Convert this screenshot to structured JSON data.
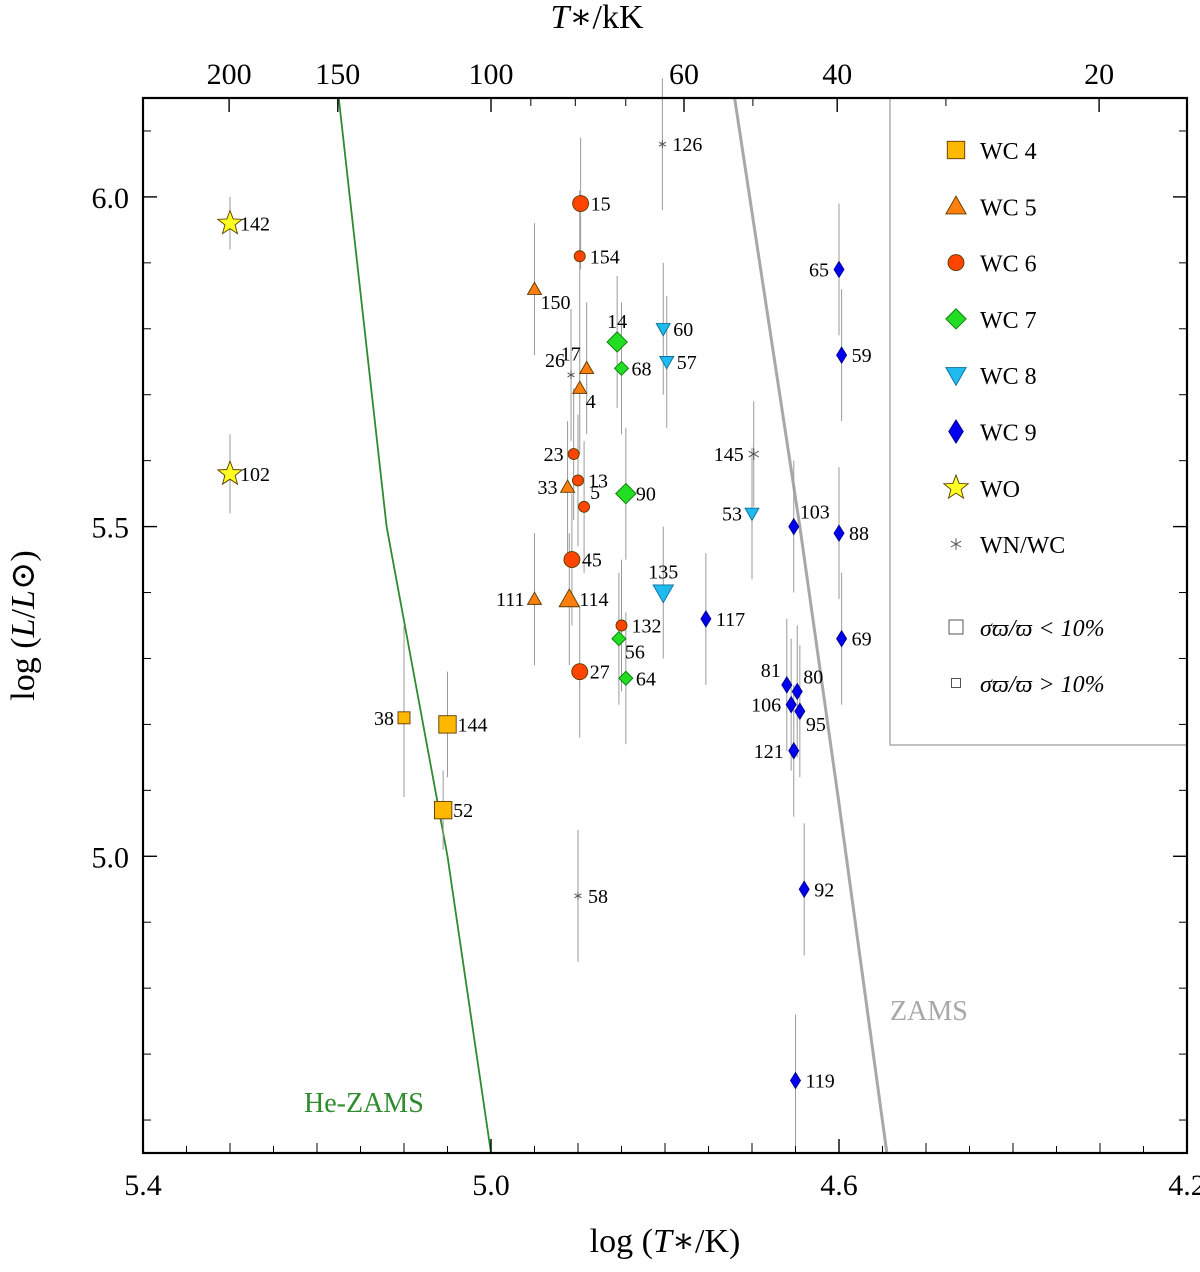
{
  "chart_data": {
    "type": "scatter",
    "title": "",
    "xlabel_bottom": "log (T∗/K)",
    "xlabel_top": "T∗/kK",
    "ylabel": "log (L/L⊙)",
    "xlim": [
      5.4,
      4.2
    ],
    "ylim": [
      4.55,
      6.15
    ],
    "x_ticks": [
      "5.4",
      "5.0",
      "4.6",
      "4.2"
    ],
    "x_tick_values": [
      5.4,
      5.0,
      4.6,
      4.2
    ],
    "y_ticks": [
      "5.0",
      "5.5",
      "6.0"
    ],
    "y_tick_values": [
      5.0,
      5.5,
      6.0
    ],
    "top_ticks": [
      "200",
      "150",
      "100",
      "60",
      "40",
      "20"
    ],
    "top_tick_values": [
      200,
      150,
      100,
      60,
      40,
      20
    ],
    "legend": {
      "placement": "top-right",
      "entries": [
        {
          "label": "WC 4",
          "type": "WC4"
        },
        {
          "label": "WC 5",
          "type": "WC5"
        },
        {
          "label": "WC 6",
          "type": "WC6"
        },
        {
          "label": "WC 7",
          "type": "WC7"
        },
        {
          "label": "WC 8",
          "type": "WC8"
        },
        {
          "label": "WC 9",
          "type": "WC9"
        },
        {
          "label": "WO",
          "type": "WO"
        },
        {
          "label": "WN/WC",
          "type": "WNWC"
        }
      ],
      "size_entries": [
        {
          "label": "σϖ/ϖ < 10%",
          "big": true
        },
        {
          "label": "σϖ/ϖ > 10%",
          "big": false
        }
      ]
    },
    "curves": [
      {
        "name": "He-ZAMS",
        "label": "He-ZAMS",
        "color": "#2e8b2e",
        "points": [
          [
            5.175,
            6.15
          ],
          [
            5.12,
            5.5
          ],
          [
            5.05,
            5.0
          ],
          [
            5.0,
            4.55
          ]
        ]
      },
      {
        "name": "ZAMS",
        "label": "ZAMS",
        "color": "#a8a8a8",
        "points": [
          [
            4.72,
            6.15
          ],
          [
            4.645,
            5.5
          ],
          [
            4.6,
            5.08
          ],
          [
            4.545,
            4.55
          ]
        ]
      }
    ],
    "series": [
      {
        "name": "WC 4",
        "marker": "square",
        "color": "#ffb800",
        "points": [
          {
            "label": "38",
            "x": 5.1,
            "y": 5.21,
            "yerr": [
              0.12,
              0.14
            ],
            "big": false,
            "side": "left"
          },
          {
            "label": "144",
            "x": 5.05,
            "y": 5.2,
            "yerr": [
              0.08,
              0.08
            ],
            "big": true,
            "side": "right"
          },
          {
            "label": "52",
            "x": 5.055,
            "y": 5.07,
            "yerr": [
              0.06,
              0.06
            ],
            "big": true,
            "side": "right"
          }
        ]
      },
      {
        "name": "WC 5",
        "marker": "triangle-up",
        "color": "#ff7f0e",
        "points": [
          {
            "label": "150",
            "x": 4.95,
            "y": 5.86,
            "yerr": [
              0.1,
              0.1
            ],
            "big": false,
            "side": "right-below"
          },
          {
            "label": "17",
            "x": 4.89,
            "y": 5.74,
            "yerr": [
              0.1,
              0.1
            ],
            "big": false,
            "side": "left-above"
          },
          {
            "label": "4",
            "x": 4.898,
            "y": 5.71,
            "yerr": [
              0.1,
              0.1
            ],
            "big": false,
            "side": "right-below"
          },
          {
            "label": "33",
            "x": 4.912,
            "y": 5.56,
            "yerr": [
              0.1,
              0.1
            ],
            "big": false,
            "side": "left"
          },
          {
            "label": "111",
            "x": 4.95,
            "y": 5.39,
            "yerr": [
              0.1,
              0.1
            ],
            "big": false,
            "side": "left"
          },
          {
            "label": "114",
            "x": 4.91,
            "y": 5.39,
            "yerr": [
              0.1,
              0.1
            ],
            "big": true,
            "side": "right"
          }
        ]
      },
      {
        "name": "WC 6",
        "marker": "circle",
        "color": "#ff4500",
        "points": [
          {
            "label": "15",
            "x": 4.897,
            "y": 5.99,
            "yerr": [
              0.1,
              0.1
            ],
            "big": true,
            "side": "right"
          },
          {
            "label": "154",
            "x": 4.898,
            "y": 5.91,
            "yerr": [
              0.1,
              0.1
            ],
            "big": false,
            "side": "right"
          },
          {
            "label": "23",
            "x": 4.905,
            "y": 5.61,
            "yerr": [
              0.1,
              0.1
            ],
            "big": false,
            "side": "left"
          },
          {
            "label": "13",
            "x": 4.9,
            "y": 5.57,
            "yerr": [
              0.1,
              0.1
            ],
            "big": false,
            "side": "right"
          },
          {
            "label": "5",
            "x": 4.893,
            "y": 5.53,
            "yerr": [
              0.1,
              0.1
            ],
            "big": false,
            "side": "right-above"
          },
          {
            "label": "45",
            "x": 4.907,
            "y": 5.45,
            "yerr": [
              0.1,
              0.1
            ],
            "big": true,
            "side": "right"
          },
          {
            "label": "132",
            "x": 4.85,
            "y": 5.35,
            "yerr": [
              0.1,
              0.1
            ],
            "big": false,
            "side": "right"
          },
          {
            "label": "27",
            "x": 4.898,
            "y": 5.28,
            "yerr": [
              0.1,
              0.1
            ],
            "big": true,
            "side": "right"
          }
        ]
      },
      {
        "name": "WC 7",
        "marker": "diamond",
        "color": "#22dd22",
        "points": [
          {
            "label": "14",
            "x": 4.855,
            "y": 5.78,
            "yerr": [
              0.1,
              0.1
            ],
            "big": true,
            "side": "top"
          },
          {
            "label": "68",
            "x": 4.85,
            "y": 5.74,
            "yerr": [
              0.1,
              0.1
            ],
            "big": false,
            "side": "right"
          },
          {
            "label": "90",
            "x": 4.845,
            "y": 5.55,
            "yerr": [
              0.1,
              0.1
            ],
            "big": true,
            "side": "right"
          },
          {
            "label": "56",
            "x": 4.853,
            "y": 5.33,
            "yerr": [
              0.1,
              0.1
            ],
            "big": false,
            "side": "right-below"
          },
          {
            "label": "64",
            "x": 4.845,
            "y": 5.27,
            "yerr": [
              0.1,
              0.1
            ],
            "big": false,
            "side": "right"
          }
        ]
      },
      {
        "name": "WC 8",
        "marker": "triangle-down",
        "color": "#1fbbee",
        "points": [
          {
            "label": "60",
            "x": 4.802,
            "y": 5.8,
            "yerr": [
              0.1,
              0.1
            ],
            "big": false,
            "side": "right"
          },
          {
            "label": "57",
            "x": 4.798,
            "y": 5.75,
            "yerr": [
              0.1,
              0.1
            ],
            "big": false,
            "side": "right"
          },
          {
            "label": "53",
            "x": 4.7,
            "y": 5.52,
            "yerr": [
              0.1,
              0.1
            ],
            "big": false,
            "side": "left"
          },
          {
            "label": "135",
            "x": 4.802,
            "y": 5.4,
            "yerr": [
              0.1,
              0.1
            ],
            "big": true,
            "side": "top"
          }
        ]
      },
      {
        "name": "WC 9",
        "marker": "thin-diamond",
        "color": "#0000ee",
        "points": [
          {
            "label": "65",
            "x": 4.6,
            "y": 5.89,
            "yerr": [
              0.1,
              0.1
            ],
            "big": false,
            "side": "left"
          },
          {
            "label": "59",
            "x": 4.597,
            "y": 5.76,
            "yerr": [
              0.1,
              0.1
            ],
            "big": false,
            "side": "right"
          },
          {
            "label": "103",
            "x": 4.652,
            "y": 5.5,
            "yerr": [
              0.1,
              0.1
            ],
            "big": false,
            "side": "right-above"
          },
          {
            "label": "88",
            "x": 4.6,
            "y": 5.49,
            "yerr": [
              0.1,
              0.1
            ],
            "big": false,
            "side": "right"
          },
          {
            "label": "117",
            "x": 4.753,
            "y": 5.36,
            "yerr": [
              0.1,
              0.1
            ],
            "big": false,
            "side": "right"
          },
          {
            "label": "69",
            "x": 4.597,
            "y": 5.33,
            "yerr": [
              0.1,
              0.1
            ],
            "big": false,
            "side": "right"
          },
          {
            "label": "81",
            "x": 4.66,
            "y": 5.26,
            "yerr": [
              0.1,
              0.1
            ],
            "big": false,
            "side": "left-above"
          },
          {
            "label": "80",
            "x": 4.648,
            "y": 5.25,
            "yerr": [
              0.1,
              0.1
            ],
            "big": false,
            "side": "right-above"
          },
          {
            "label": "106",
            "x": 4.655,
            "y": 5.23,
            "yerr": [
              0.1,
              0.1
            ],
            "big": false,
            "side": "left"
          },
          {
            "label": "95",
            "x": 4.645,
            "y": 5.22,
            "yerr": [
              0.1,
              0.1
            ],
            "big": false,
            "side": "right-below"
          },
          {
            "label": "121",
            "x": 4.652,
            "y": 5.16,
            "yerr": [
              0.1,
              0.1
            ],
            "big": false,
            "side": "left"
          },
          {
            "label": "92",
            "x": 4.64,
            "y": 4.95,
            "yerr": [
              0.1,
              0.1
            ],
            "big": false,
            "side": "right"
          },
          {
            "label": "119",
            "x": 4.65,
            "y": 4.66,
            "yerr": [
              0.1,
              0.1
            ],
            "big": false,
            "side": "right"
          }
        ]
      },
      {
        "name": "WO",
        "marker": "star",
        "color": "#ffff22",
        "points": [
          {
            "label": "142",
            "x": 5.3,
            "y": 5.96,
            "yerr": [
              0.04,
              0.04
            ],
            "big": true,
            "side": "right"
          },
          {
            "label": "102",
            "x": 5.3,
            "y": 5.58,
            "yerr": [
              0.06,
              0.06
            ],
            "big": true,
            "side": "right"
          }
        ]
      },
      {
        "name": "WN/WC",
        "marker": "asterisk",
        "color": "#555555",
        "points": [
          {
            "label": "126",
            "x": 4.803,
            "y": 6.08,
            "yerr": [
              0.1,
              0.1
            ],
            "big": false,
            "side": "right"
          },
          {
            "label": "26",
            "x": 4.908,
            "y": 5.73,
            "yerr": [
              0.1,
              0.1
            ],
            "big": false,
            "side": "left-above"
          },
          {
            "label": "145",
            "x": 4.698,
            "y": 5.61,
            "yerr": [
              0.08,
              0.08
            ],
            "big": true,
            "side": "left"
          },
          {
            "label": "58",
            "x": 4.9,
            "y": 4.94,
            "yerr": [
              0.1,
              0.1
            ],
            "big": false,
            "side": "right"
          }
        ]
      }
    ]
  },
  "colors": {
    "error_bar": "#9a9a9a",
    "frame": "#000000",
    "legend_box": "#9a9a9a"
  }
}
